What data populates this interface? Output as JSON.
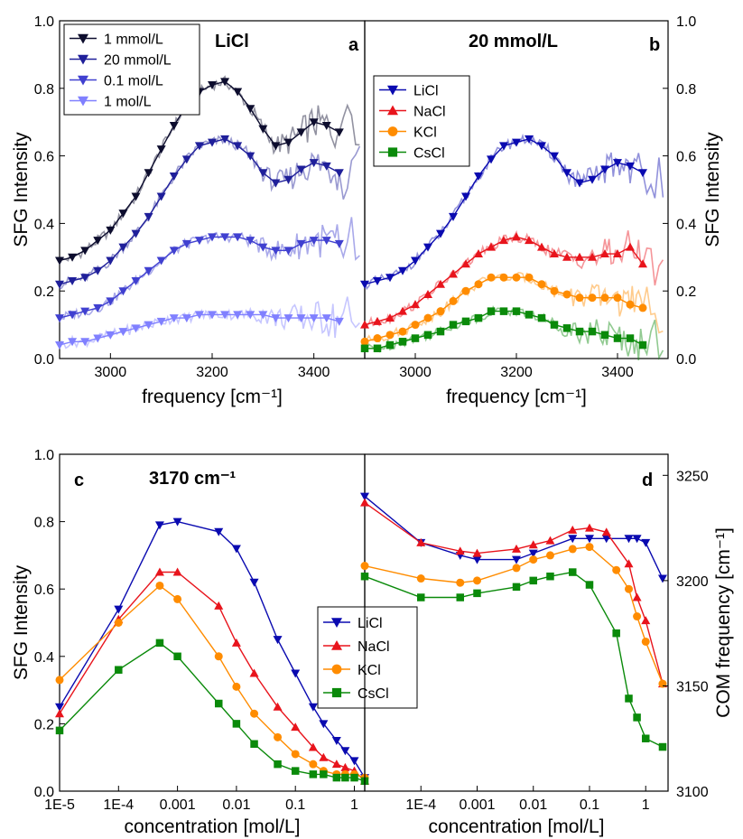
{
  "colors": {
    "LiCl": "#0a0ab0",
    "NaCl": "#e8141c",
    "KCl": "#ff8c00",
    "CsCl": "#0a8a0a",
    "c1mmol": "#0d0d2e",
    "c20mmol": "#1f1f9a",
    "c01mol": "#4040d0",
    "c1mol": "#8080ff"
  },
  "chart_data": [
    {
      "panel": "a",
      "type": "line",
      "title": "LiCl",
      "xlabel": "frequency [cm⁻¹]",
      "ylabel": "SFG Intensity",
      "xlim": [
        2900,
        3500
      ],
      "ylim": [
        0.0,
        1.0
      ],
      "xticks": [
        3000,
        3200,
        3400
      ],
      "yticks": [
        0.0,
        0.2,
        0.4,
        0.6,
        0.8,
        1.0
      ],
      "legend_position": "top-left",
      "marker": "triangle-down",
      "x": [
        2900,
        2925,
        2950,
        2975,
        3000,
        3025,
        3050,
        3075,
        3100,
        3125,
        3150,
        3175,
        3200,
        3225,
        3250,
        3275,
        3300,
        3325,
        3350,
        3375,
        3400,
        3425,
        3450
      ],
      "series": [
        {
          "name": "1 mmol/L",
          "color": "#0d0d2e",
          "values": [
            0.29,
            0.3,
            0.32,
            0.35,
            0.38,
            0.43,
            0.48,
            0.55,
            0.62,
            0.69,
            0.75,
            0.79,
            0.81,
            0.82,
            0.79,
            0.74,
            0.68,
            0.63,
            0.64,
            0.67,
            0.7,
            0.69,
            0.67
          ]
        },
        {
          "name": "20 mmol/L",
          "color": "#1f1f9a",
          "values": [
            0.22,
            0.23,
            0.24,
            0.26,
            0.29,
            0.33,
            0.37,
            0.42,
            0.48,
            0.54,
            0.59,
            0.63,
            0.64,
            0.65,
            0.63,
            0.6,
            0.55,
            0.52,
            0.53,
            0.56,
            0.58,
            0.57,
            0.55
          ]
        },
        {
          "name": "0.1 mol/L",
          "color": "#4040d0",
          "values": [
            0.12,
            0.13,
            0.14,
            0.15,
            0.17,
            0.2,
            0.23,
            0.26,
            0.29,
            0.32,
            0.34,
            0.35,
            0.36,
            0.36,
            0.36,
            0.35,
            0.33,
            0.32,
            0.32,
            0.34,
            0.35,
            0.35,
            0.34
          ]
        },
        {
          "name": "1 mol/L",
          "color": "#8080ff",
          "values": [
            0.04,
            0.05,
            0.05,
            0.06,
            0.07,
            0.08,
            0.09,
            0.1,
            0.11,
            0.12,
            0.12,
            0.13,
            0.13,
            0.13,
            0.13,
            0.13,
            0.13,
            0.12,
            0.12,
            0.12,
            0.12,
            0.12,
            0.11
          ]
        }
      ]
    },
    {
      "panel": "b",
      "type": "line",
      "title": "20 mmol/L",
      "xlabel": "frequency [cm⁻¹]",
      "ylabel": "SFG Intensity",
      "xlim": [
        2900,
        3500
      ],
      "ylim": [
        0.0,
        1.0
      ],
      "xticks": [
        3000,
        3200,
        3400
      ],
      "yticks": [
        0.0,
        0.2,
        0.4,
        0.6,
        0.8,
        1.0
      ],
      "legend_position": "top-left",
      "x": [
        2900,
        2925,
        2950,
        2975,
        3000,
        3025,
        3050,
        3075,
        3100,
        3125,
        3150,
        3175,
        3200,
        3225,
        3250,
        3275,
        3300,
        3325,
        3350,
        3375,
        3400,
        3425,
        3450
      ],
      "series": [
        {
          "name": "LiCl",
          "color": "#0a0ab0",
          "marker": "triangle-down",
          "values": [
            0.22,
            0.23,
            0.24,
            0.26,
            0.29,
            0.33,
            0.37,
            0.42,
            0.48,
            0.54,
            0.59,
            0.63,
            0.64,
            0.65,
            0.63,
            0.6,
            0.55,
            0.52,
            0.53,
            0.56,
            0.58,
            0.57,
            0.55
          ]
        },
        {
          "name": "NaCl",
          "color": "#e8141c",
          "marker": "triangle-up",
          "values": [
            0.1,
            0.11,
            0.12,
            0.14,
            0.16,
            0.19,
            0.22,
            0.25,
            0.28,
            0.31,
            0.33,
            0.35,
            0.36,
            0.35,
            0.33,
            0.31,
            0.3,
            0.3,
            0.3,
            0.31,
            0.31,
            0.33,
            0.28
          ]
        },
        {
          "name": "KCl",
          "color": "#ff8c00",
          "marker": "circle",
          "values": [
            0.05,
            0.06,
            0.07,
            0.08,
            0.1,
            0.12,
            0.14,
            0.17,
            0.2,
            0.22,
            0.24,
            0.24,
            0.24,
            0.24,
            0.22,
            0.2,
            0.19,
            0.18,
            0.18,
            0.18,
            0.18,
            0.16,
            0.15
          ]
        },
        {
          "name": "CsCl",
          "color": "#0a8a0a",
          "marker": "square",
          "values": [
            0.03,
            0.03,
            0.04,
            0.05,
            0.06,
            0.07,
            0.08,
            0.1,
            0.11,
            0.12,
            0.14,
            0.14,
            0.14,
            0.13,
            0.12,
            0.1,
            0.09,
            0.08,
            0.08,
            0.07,
            0.06,
            0.06,
            0.04
          ]
        }
      ]
    },
    {
      "panel": "c",
      "type": "line",
      "title": "3170 cm⁻¹",
      "xlabel": "concentration [mol/L]",
      "ylabel": "SFG Intensity",
      "xscale": "log",
      "xlim": [
        1e-05,
        1.5
      ],
      "ylim": [
        0.0,
        1.0
      ],
      "xticks": [
        1e-05,
        0.0001,
        0.001,
        0.01,
        0.1,
        1
      ],
      "xtick_labels": [
        "1E-5",
        "1E-4",
        "0.001",
        "0.01",
        "0.1",
        "1"
      ],
      "yticks": [
        0.0,
        0.2,
        0.4,
        0.6,
        0.8,
        1.0
      ],
      "legend_position": "center-right",
      "series": [
        {
          "name": "LiCl",
          "color": "#0a0ab0",
          "marker": "triangle-down",
          "x": [
            1e-05,
            0.0001,
            0.0005,
            0.001,
            0.005,
            0.01,
            0.02,
            0.05,
            0.1,
            0.2,
            0.3,
            0.5,
            0.7,
            1,
            1.5
          ],
          "values": [
            0.25,
            0.54,
            0.79,
            0.8,
            0.77,
            0.72,
            0.62,
            0.45,
            0.35,
            0.25,
            0.2,
            0.15,
            0.12,
            0.09,
            0.04
          ]
        },
        {
          "name": "NaCl",
          "color": "#e8141c",
          "marker": "triangle-up",
          "x": [
            1e-05,
            0.0001,
            0.0005,
            0.001,
            0.005,
            0.01,
            0.02,
            0.05,
            0.1,
            0.2,
            0.3,
            0.5,
            0.7,
            1,
            1.5
          ],
          "values": [
            0.23,
            0.51,
            0.65,
            0.65,
            0.55,
            0.44,
            0.35,
            0.25,
            0.19,
            0.13,
            0.1,
            0.08,
            0.07,
            0.06,
            0.03
          ]
        },
        {
          "name": "KCl",
          "color": "#ff8c00",
          "marker": "circle",
          "x": [
            1e-05,
            0.0001,
            0.0005,
            0.001,
            0.005,
            0.01,
            0.02,
            0.05,
            0.1,
            0.2,
            0.3,
            0.5,
            0.7,
            1,
            1.5
          ],
          "values": [
            0.33,
            0.5,
            0.61,
            0.57,
            0.4,
            0.31,
            0.23,
            0.16,
            0.11,
            0.08,
            0.06,
            0.05,
            0.05,
            0.05,
            0.04
          ]
        },
        {
          "name": "CsCl",
          "color": "#0a8a0a",
          "marker": "square",
          "x": [
            1e-05,
            0.0001,
            0.0005,
            0.001,
            0.005,
            0.01,
            0.02,
            0.05,
            0.1,
            0.2,
            0.3,
            0.5,
            0.7,
            1,
            1.5
          ],
          "values": [
            0.18,
            0.36,
            0.44,
            0.4,
            0.26,
            0.2,
            0.14,
            0.08,
            0.06,
            0.05,
            0.05,
            0.04,
            0.04,
            0.04,
            0.03
          ]
        }
      ]
    },
    {
      "panel": "d",
      "type": "line",
      "xlabel": "concentration [mol/L]",
      "ylabel": "COM frequency [cm⁻¹]",
      "xscale": "log",
      "xlim": [
        1e-05,
        2.5
      ],
      "ylim": [
        3100,
        3260
      ],
      "xticks": [
        0.0001,
        0.001,
        0.01,
        0.1,
        1
      ],
      "xtick_labels": [
        "1E-4",
        "0.001",
        "0.01",
        "0.1",
        "1"
      ],
      "yticks": [
        3100,
        3150,
        3200,
        3250
      ],
      "series": [
        {
          "name": "LiCl",
          "color": "#0a0ab0",
          "marker": "triangle-down",
          "x": [
            1e-05,
            0.0001,
            0.0005,
            0.001,
            0.005,
            0.01,
            0.05,
            0.1,
            0.2,
            0.5,
            0.7,
            1,
            2
          ],
          "values": [
            3240,
            3218,
            3212,
            3210,
            3210,
            3213,
            3220,
            3220,
            3220,
            3220,
            3220,
            3218,
            3201
          ]
        },
        {
          "name": "NaCl",
          "color": "#e8141c",
          "marker": "triangle-up",
          "x": [
            1e-05,
            0.0001,
            0.0005,
            0.001,
            0.005,
            0.01,
            0.02,
            0.05,
            0.1,
            0.2,
            0.5,
            0.7,
            1,
            2
          ],
          "values": [
            3237,
            3218,
            3214,
            3213,
            3215,
            3217,
            3219,
            3224,
            3225,
            3223,
            3208,
            3192,
            3181,
            3151
          ]
        },
        {
          "name": "KCl",
          "color": "#ff8c00",
          "marker": "circle",
          "x": [
            1e-05,
            0.0001,
            0.0005,
            0.001,
            0.005,
            0.01,
            0.02,
            0.05,
            0.1,
            0.3,
            0.5,
            0.7,
            1,
            2
          ],
          "values": [
            3207,
            3201,
            3199,
            3200,
            3206,
            3210,
            3212,
            3215,
            3216,
            3205,
            3196,
            3183,
            3171,
            3151
          ]
        },
        {
          "name": "CsCl",
          "color": "#0a8a0a",
          "marker": "square",
          "x": [
            1e-05,
            0.0001,
            0.0005,
            0.001,
            0.005,
            0.01,
            0.02,
            0.05,
            0.1,
            0.3,
            0.5,
            0.7,
            1,
            2
          ],
          "values": [
            3202,
            3192,
            3192,
            3194,
            3197,
            3200,
            3202,
            3204,
            3198,
            3175,
            3144,
            3135,
            3125,
            3121
          ]
        }
      ]
    }
  ]
}
